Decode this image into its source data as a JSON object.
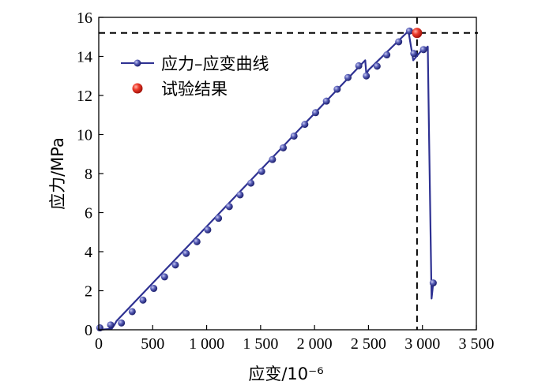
{
  "chart_data": {
    "type": "line",
    "xlabel": "应变/10⁻⁶",
    "ylabel": "应力/MPa",
    "xlim": [
      0,
      3500
    ],
    "ylim": [
      0,
      16
    ],
    "x_ticks": [
      0,
      500,
      1000,
      1500,
      2000,
      2500,
      3000,
      3500
    ],
    "x_tick_labels": [
      "0",
      "500",
      "1 000",
      "1 500",
      "2 000",
      "2 500",
      "3 000",
      "3 500"
    ],
    "y_ticks": [
      0,
      2,
      4,
      6,
      8,
      10,
      12,
      14,
      16
    ],
    "y_tick_labels": [
      "0",
      "2",
      "4",
      "6",
      "8",
      "10",
      "12",
      "14",
      "16"
    ],
    "legend_position": "upper-left",
    "series": [
      {
        "name": "应力–应变曲线",
        "color": "#2e3192",
        "marker": "circle",
        "points": [
          [
            0,
            0
          ],
          [
            120,
            0.05
          ],
          [
            145,
            0.25
          ],
          [
            165,
            0.45
          ],
          [
            2470,
            13.8
          ],
          [
            2480,
            13.1
          ],
          [
            2500,
            13.3
          ],
          [
            2870,
            15.3
          ],
          [
            2900,
            14.3
          ],
          [
            2915,
            13.8
          ],
          [
            2960,
            14.1
          ],
          [
            3000,
            14.35
          ],
          [
            3030,
            14.4
          ],
          [
            3050,
            14.5
          ],
          [
            3060,
            10.5
          ],
          [
            3075,
            5.0
          ],
          [
            3085,
            1.6
          ],
          [
            3100,
            2.4
          ]
        ],
        "markers": [
          [
            10,
            0.1
          ],
          [
            110,
            0.25
          ],
          [
            210,
            0.35
          ],
          [
            310,
            0.93
          ],
          [
            410,
            1.52
          ],
          [
            510,
            2.12
          ],
          [
            610,
            2.71
          ],
          [
            710,
            3.32
          ],
          [
            810,
            3.91
          ],
          [
            910,
            4.51
          ],
          [
            1010,
            5.12
          ],
          [
            1110,
            5.71
          ],
          [
            1210,
            6.31
          ],
          [
            1310,
            6.91
          ],
          [
            1410,
            7.51
          ],
          [
            1510,
            8.11
          ],
          [
            1610,
            8.72
          ],
          [
            1710,
            9.32
          ],
          [
            1810,
            9.92
          ],
          [
            1910,
            10.52
          ],
          [
            2010,
            11.12
          ],
          [
            2110,
            11.71
          ],
          [
            2210,
            12.32
          ],
          [
            2310,
            12.92
          ],
          [
            2410,
            13.52
          ],
          [
            2480,
            13.0
          ],
          [
            2580,
            13.5
          ],
          [
            2670,
            14.08
          ],
          [
            2780,
            14.75
          ],
          [
            2880,
            15.3
          ],
          [
            2920,
            14.15
          ],
          [
            3010,
            14.35
          ],
          [
            3100,
            2.4
          ]
        ]
      },
      {
        "name": "试验结果",
        "color": "#e8281e",
        "marker": "sphere",
        "points": [
          [
            2950,
            15.2
          ]
        ]
      }
    ],
    "reference_lines": {
      "x": 2950,
      "y": 15.2,
      "style": "dashed"
    }
  }
}
